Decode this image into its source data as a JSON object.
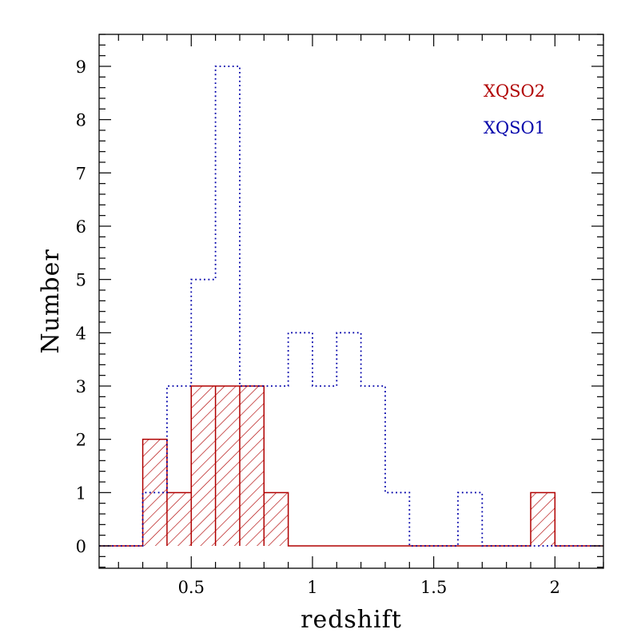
{
  "chart_data": {
    "type": "histogram",
    "xlabel": "redshift",
    "ylabel": "Number",
    "xlim": [
      0.12,
      2.2
    ],
    "ylim": [
      -0.42,
      9.6
    ],
    "x_ticks": [
      0.5,
      1,
      1.5,
      2
    ],
    "x_tick_labels": [
      "0.5",
      "1",
      "1.5",
      "2"
    ],
    "y_ticks": [
      0,
      1,
      2,
      3,
      4,
      5,
      6,
      7,
      8,
      9
    ],
    "y_tick_labels": [
      "0",
      "1",
      "2",
      "3",
      "4",
      "5",
      "6",
      "7",
      "8",
      "9"
    ],
    "x_minor_step": 0.1,
    "y_minor_step": 0.2,
    "bin_edges": [
      0.1,
      0.2,
      0.3,
      0.4,
      0.5,
      0.6,
      0.7,
      0.8,
      0.9,
      1.0,
      1.1,
      1.2,
      1.3,
      1.4,
      1.5,
      1.6,
      1.7,
      1.8,
      1.9,
      2.0,
      2.1,
      2.2
    ],
    "series": [
      {
        "name": "XQSO2",
        "style": "solid-hatched",
        "color": "#b00000",
        "counts": [
          0,
          0,
          2,
          1,
          3,
          3,
          3,
          1,
          0,
          0,
          0,
          0,
          0,
          0,
          0,
          0,
          0,
          0,
          1,
          0,
          0
        ]
      },
      {
        "name": "XQSO1",
        "style": "dotted",
        "color": "#0000aa",
        "counts": [
          0,
          0,
          1,
          3,
          5,
          9,
          3,
          3,
          4,
          3,
          4,
          3,
          1,
          0,
          0,
          1,
          0,
          0,
          0,
          0,
          0
        ]
      }
    ],
    "legend": [
      {
        "label": "XQSO2",
        "color": "#b00000"
      },
      {
        "label": "XQSO1",
        "color": "#0000aa"
      }
    ],
    "legend_position": "top-right",
    "grid": false
  }
}
